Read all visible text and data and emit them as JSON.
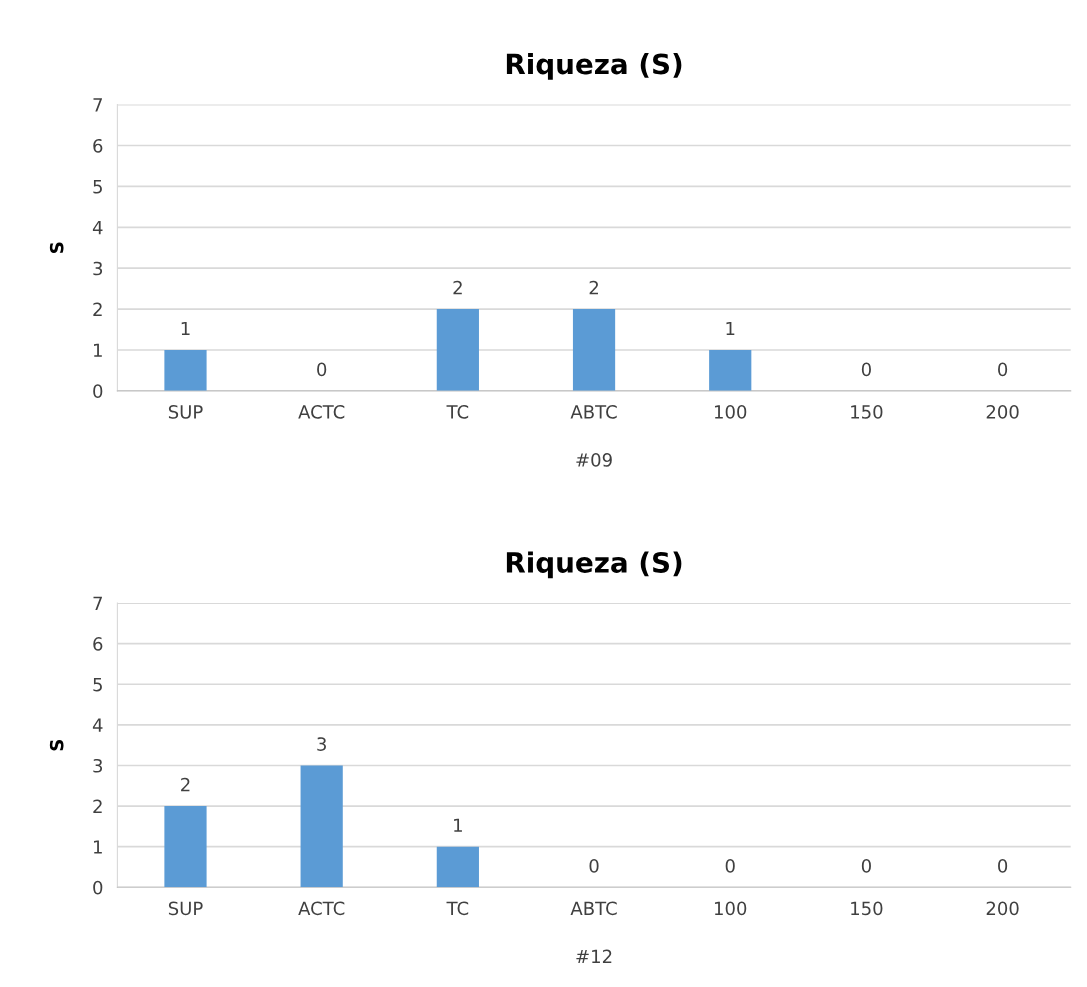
{
  "chart_data": [
    {
      "type": "bar",
      "title": "Riqueza (S)",
      "ylabel": "S",
      "xlabel": "#09",
      "categories": [
        "SUP",
        "ACTC",
        "TC",
        "ABTC",
        "100",
        "150",
        "200"
      ],
      "values": [
        1,
        0,
        2,
        2,
        1,
        0,
        0
      ],
      "color": "#5b9bd5",
      "ylim": [
        0,
        7
      ],
      "yticks": [
        0,
        1,
        2,
        3,
        4,
        5,
        6,
        7
      ],
      "grid": "y",
      "data_labels": true
    },
    {
      "type": "bar",
      "title": "Riqueza (S)",
      "ylabel": "S",
      "xlabel": "#12",
      "categories": [
        "SUP",
        "ACTC",
        "TC",
        "ABTC",
        "100",
        "150",
        "200"
      ],
      "values": [
        2,
        3,
        1,
        0,
        0,
        0,
        0
      ],
      "color": "#5b9bd5",
      "ylim": [
        0,
        7
      ],
      "yticks": [
        0,
        1,
        2,
        3,
        4,
        5,
        6,
        7
      ],
      "grid": "y",
      "data_labels": true
    }
  ]
}
